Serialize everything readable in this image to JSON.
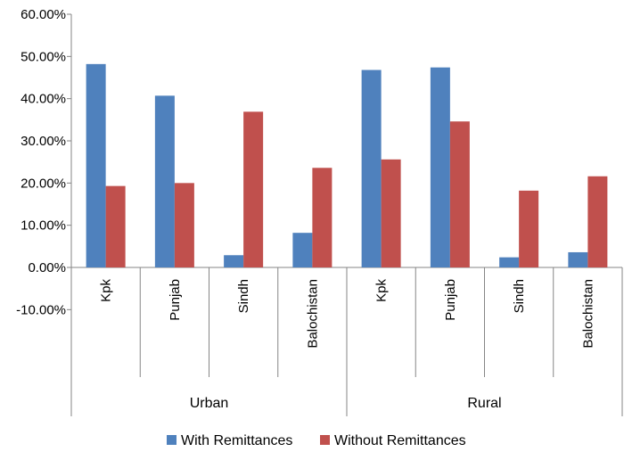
{
  "chart_data": {
    "type": "bar",
    "groups": [
      {
        "label": "Urban",
        "categories": [
          "Kpk",
          "Punjab",
          "Sindh",
          "Balochistan"
        ]
      },
      {
        "label": "Rural",
        "categories": [
          "Kpk",
          "Punjab",
          "Sindh",
          "Balochistan"
        ]
      }
    ],
    "series": [
      {
        "name": "With Remittances",
        "color": "#4F81BD",
        "values": [
          48.2,
          40.7,
          2.9,
          8.2,
          46.8,
          47.4,
          2.4,
          3.6
        ]
      },
      {
        "name": "Without Remittances",
        "color": "#C0504D",
        "values": [
          19.3,
          20.0,
          36.9,
          23.6,
          25.6,
          34.6,
          18.2,
          21.6
        ]
      }
    ],
    "yticks": [
      "60.00%",
      "50.00%",
      "40.00%",
      "30.00%",
      "20.00%",
      "10.00%",
      "0.00%",
      "-10.00%"
    ],
    "ylim": [
      -10,
      60
    ],
    "grid": false,
    "legend_position": "bottom"
  }
}
